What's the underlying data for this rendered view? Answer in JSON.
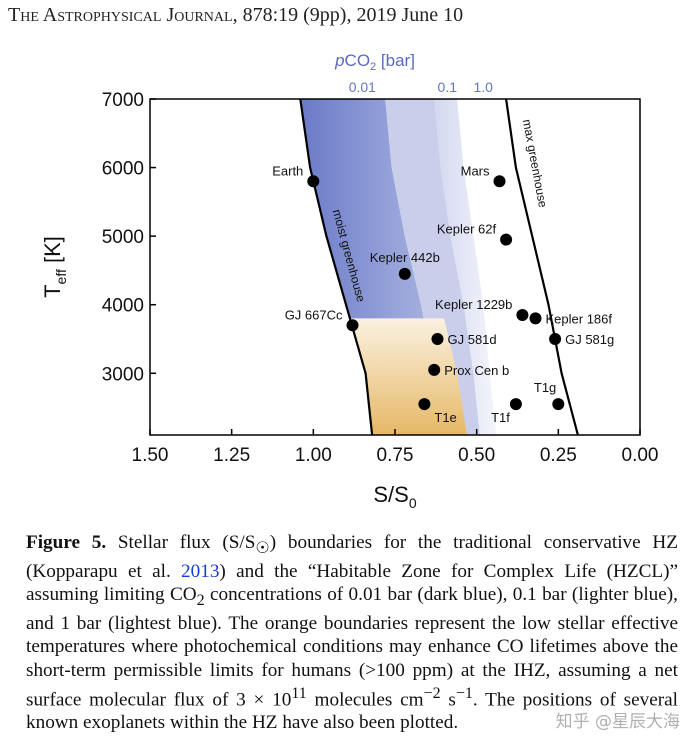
{
  "header": {
    "journal": "The Astrophysical Journal",
    "citation": ", 878:19 (9pp), 2019 June 10"
  },
  "chart_data": {
    "type": "scatter",
    "xlabel": "S/S",
    "xlabel_sub": "0",
    "ylabel": "T",
    "ylabel_sub": "eff",
    "ylabel_unit": " [K]",
    "xlim": [
      1.5,
      0.0
    ],
    "ylim": [
      2100,
      7000
    ],
    "x_reversed": true,
    "xticks": [
      "1.50",
      "1.25",
      "1.00",
      "0.75",
      "0.50",
      "0.25",
      "0.00"
    ],
    "xtick_values": [
      1.5,
      1.25,
      1.0,
      0.75,
      0.5,
      0.25,
      0.0
    ],
    "yticks": [
      "7000",
      "6000",
      "5000",
      "4000",
      "3000"
    ],
    "ytick_values": [
      7000,
      6000,
      5000,
      4000,
      3000
    ],
    "top_axis": {
      "label_italic": "p",
      "label_main": "CO",
      "label_sub": "2",
      "label_unit": " [bar]",
      "ticks": [
        {
          "label": "0.01",
          "x": 0.85
        },
        {
          "label": "0.1",
          "x": 0.59
        },
        {
          "label": "1.0",
          "x": 0.48
        }
      ]
    },
    "curves": [
      {
        "label": "moist greenhouse",
        "points": [
          [
            1.04,
            7000
          ],
          [
            1.01,
            6000
          ],
          [
            0.96,
            5000
          ],
          [
            0.9,
            4000
          ],
          [
            0.84,
            3000
          ],
          [
            0.82,
            2100
          ]
        ]
      },
      {
        "label": "max greenhouse",
        "points": [
          [
            0.41,
            7000
          ],
          [
            0.38,
            6000
          ],
          [
            0.33,
            5000
          ],
          [
            0.28,
            4000
          ],
          [
            0.24,
            3000
          ],
          [
            0.19,
            2100
          ]
        ]
      }
    ],
    "bands": [
      {
        "name": "0.01 bar",
        "color": "#6f7fcc",
        "left": [
          [
            1.04,
            7000
          ],
          [
            1.01,
            6000
          ],
          [
            0.96,
            5000
          ],
          [
            0.9,
            4000
          ],
          [
            0.84,
            3000
          ],
          [
            0.82,
            2100
          ]
        ],
        "right": [
          [
            0.78,
            7000
          ],
          [
            0.76,
            6000
          ],
          [
            0.72,
            5000
          ],
          [
            0.67,
            4000
          ],
          [
            0.63,
            3000
          ],
          [
            0.6,
            2100
          ]
        ]
      },
      {
        "name": "0.1 bar",
        "color": "#b7c0e6",
        "left": [
          [
            0.78,
            7000
          ],
          [
            0.76,
            6000
          ],
          [
            0.72,
            5000
          ],
          [
            0.67,
            4000
          ],
          [
            0.63,
            3000
          ],
          [
            0.6,
            2100
          ]
        ],
        "right": [
          [
            0.63,
            7000
          ],
          [
            0.61,
            6000
          ],
          [
            0.58,
            5000
          ],
          [
            0.54,
            4000
          ],
          [
            0.51,
            3000
          ],
          [
            0.49,
            2100
          ]
        ]
      },
      {
        "name": "1 bar",
        "color": "#e7eaf7",
        "left": [
          [
            0.63,
            7000
          ],
          [
            0.61,
            6000
          ],
          [
            0.58,
            5000
          ],
          [
            0.54,
            4000
          ],
          [
            0.51,
            3000
          ],
          [
            0.49,
            2100
          ]
        ],
        "right": [
          [
            0.56,
            7000
          ],
          [
            0.54,
            6000
          ],
          [
            0.51,
            5000
          ],
          [
            0.48,
            4000
          ],
          [
            0.46,
            3000
          ],
          [
            0.44,
            2100
          ]
        ]
      }
    ],
    "orange_region": {
      "color": "#e6b866",
      "top": 3800,
      "left_boundary": "moist greenhouse",
      "right": [
        [
          0.6,
          3800
        ],
        [
          0.56,
          3000
        ],
        [
          0.53,
          2100
        ]
      ]
    },
    "points": [
      {
        "name": "Earth",
        "x": 1.0,
        "y": 5800,
        "label_side": "left"
      },
      {
        "name": "Mars",
        "x": 0.43,
        "y": 5800,
        "label_side": "left"
      },
      {
        "name": "Kepler 62f",
        "x": 0.41,
        "y": 4950,
        "label_side": "left"
      },
      {
        "name": "Kepler 442b",
        "x": 0.72,
        "y": 4450,
        "label_side": "above"
      },
      {
        "name": "Kepler 1229b",
        "x": 0.36,
        "y": 3850,
        "label_side": "left"
      },
      {
        "name": "Kepler 186f",
        "x": 0.32,
        "y": 3800,
        "label_side": "right"
      },
      {
        "name": "GJ 667Cc",
        "x": 0.88,
        "y": 3700,
        "label_side": "left"
      },
      {
        "name": "GJ 581d",
        "x": 0.62,
        "y": 3500,
        "label_side": "right"
      },
      {
        "name": "GJ 581g",
        "x": 0.26,
        "y": 3500,
        "label_side": "right"
      },
      {
        "name": "Prox Cen b",
        "x": 0.63,
        "y": 3050,
        "label_side": "right"
      },
      {
        "name": "T1e",
        "x": 0.66,
        "y": 2550,
        "label_side": "below-right"
      },
      {
        "name": "T1f",
        "x": 0.38,
        "y": 2550,
        "label_side": "below-left"
      },
      {
        "name": "T1g",
        "x": 0.25,
        "y": 2550,
        "label_side": "above-left"
      }
    ]
  },
  "caption": {
    "fig_label": "Figure 5.",
    "line1": " Stellar flux (S/S",
    "sun": "☉",
    "line1b": ") boundaries for the traditional conservative HZ (Kopparapu et al. ",
    "year_link": "2013",
    "rest": ") and the “Habitable Zone for Complex Life (HZCL)” assuming limiting CO",
    "sub2": "2",
    "rest2": " concentrations of 0.01 bar (dark blue), 0.1 bar (lighter blue), and 1 bar (lightest blue). The orange boundaries represent the low stellar effective temperatures where photochemical conditions may enhance CO lifetimes above the short-term permissible limits for humans (>100 ppm) at the IHZ, assuming a net surface molecular flux of 3 × 10",
    "sup11": "11",
    "rest3": " molecules cm",
    "supm2": "−2",
    "rest4": " s",
    "supm1": "−1",
    "rest5": ". The positions of several known exoplanets within the HZ have also been plotted."
  },
  "watermark": "知乎 @星辰大海"
}
